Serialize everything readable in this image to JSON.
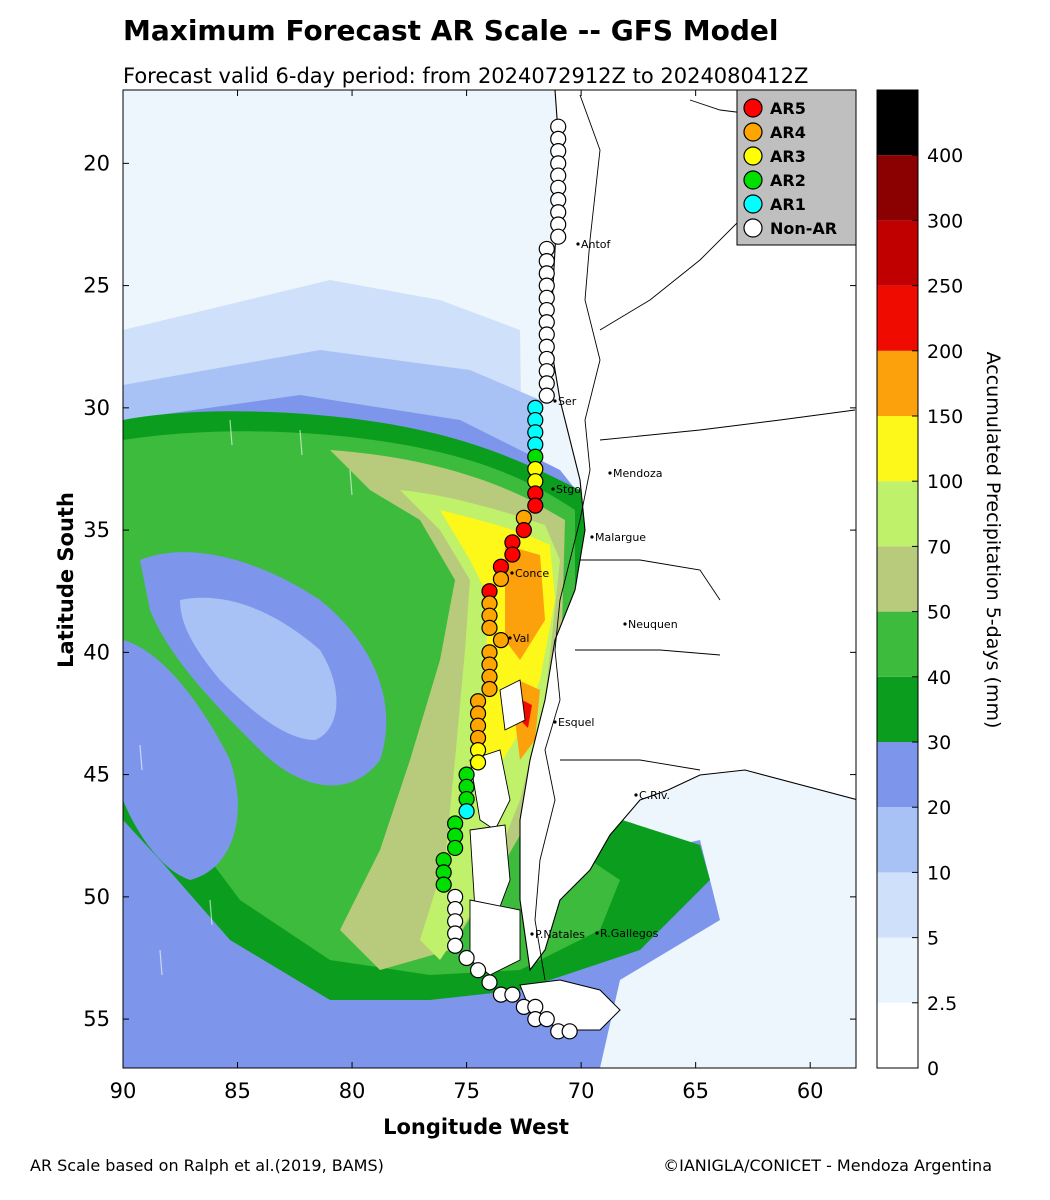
{
  "title": "Maximum Forecast AR Scale -- GFS Model",
  "subtitle": "Forecast valid 6-day period: from 2024072912Z to 2024080412Z",
  "axes": {
    "xlabel": "Longitude West",
    "ylabel": "Latitude South",
    "xticks": [
      "90",
      "85",
      "80",
      "75",
      "70",
      "65",
      "60"
    ],
    "yticks": [
      "20",
      "25",
      "30",
      "35",
      "40",
      "45",
      "50",
      "55"
    ]
  },
  "colorbar": {
    "label": "Accumulated Precipitation 5-days (mm)",
    "ticks": [
      "0",
      "2.5",
      "5",
      "10",
      "20",
      "30",
      "40",
      "50",
      "70",
      "100",
      "150",
      "200",
      "250",
      "300",
      "400"
    ],
    "colors": [
      "#ffffff",
      "#e9f4fd",
      "#cfe0fa",
      "#a8c2f5",
      "#7d96ec",
      "#0b9e1e",
      "#3cbb3c",
      "#b8cb7c",
      "#bff26a",
      "#fdf71a",
      "#fca00c",
      "#f00b00",
      "#c00000",
      "#8b0000",
      "#000000"
    ]
  },
  "legend": {
    "items": [
      {
        "label": "AR5",
        "color": "#ff0000"
      },
      {
        "label": "AR4",
        "color": "#ffa500"
      },
      {
        "label": "AR3",
        "color": "#ffff00"
      },
      {
        "label": "AR2",
        "color": "#00e000"
      },
      {
        "label": "AR1",
        "color": "#00ffff"
      },
      {
        "label": "Non-AR",
        "color": "#ffffff"
      }
    ]
  },
  "cities": [
    {
      "name": "Antof"
    },
    {
      "name": "Ser"
    },
    {
      "name": "Mendoza"
    },
    {
      "name": "Stgo"
    },
    {
      "name": "Malargue"
    },
    {
      "name": "Conce"
    },
    {
      "name": "Neuquen"
    },
    {
      "name": "Val"
    },
    {
      "name": "Esquel"
    },
    {
      "name": "C.Riv."
    },
    {
      "name": "P.Natales"
    },
    {
      "name": "R.Gallegos"
    }
  ],
  "footer": {
    "left": "AR Scale based on Ralph et al.(2019, BAMS)",
    "right": "©IANIGLA/CONICET - Mendoza Argentina"
  },
  "chart_data": {
    "type": "heatmap",
    "xlim": [
      90,
      58
    ],
    "ylim": [
      17,
      57
    ],
    "coastal_points": [
      {
        "lat": 18.5,
        "lon": 71.0,
        "scale": "Non-AR"
      },
      {
        "lat": 19.0,
        "lon": 71.0,
        "scale": "Non-AR"
      },
      {
        "lat": 19.5,
        "lon": 71.0,
        "scale": "Non-AR"
      },
      {
        "lat": 20.0,
        "lon": 71.0,
        "scale": "Non-AR"
      },
      {
        "lat": 20.5,
        "lon": 71.0,
        "scale": "Non-AR"
      },
      {
        "lat": 21.0,
        "lon": 71.0,
        "scale": "Non-AR"
      },
      {
        "lat": 21.5,
        "lon": 71.0,
        "scale": "Non-AR"
      },
      {
        "lat": 22.0,
        "lon": 71.0,
        "scale": "Non-AR"
      },
      {
        "lat": 22.5,
        "lon": 71.0,
        "scale": "Non-AR"
      },
      {
        "lat": 23.0,
        "lon": 71.0,
        "scale": "Non-AR"
      },
      {
        "lat": 23.5,
        "lon": 71.5,
        "scale": "Non-AR"
      },
      {
        "lat": 24.0,
        "lon": 71.5,
        "scale": "Non-AR"
      },
      {
        "lat": 24.5,
        "lon": 71.5,
        "scale": "Non-AR"
      },
      {
        "lat": 25.0,
        "lon": 71.5,
        "scale": "Non-AR"
      },
      {
        "lat": 25.5,
        "lon": 71.5,
        "scale": "Non-AR"
      },
      {
        "lat": 26.0,
        "lon": 71.5,
        "scale": "Non-AR"
      },
      {
        "lat": 26.5,
        "lon": 71.5,
        "scale": "Non-AR"
      },
      {
        "lat": 27.0,
        "lon": 71.5,
        "scale": "Non-AR"
      },
      {
        "lat": 27.5,
        "lon": 71.5,
        "scale": "Non-AR"
      },
      {
        "lat": 28.0,
        "lon": 71.5,
        "scale": "Non-AR"
      },
      {
        "lat": 28.5,
        "lon": 71.5,
        "scale": "Non-AR"
      },
      {
        "lat": 29.0,
        "lon": 71.5,
        "scale": "Non-AR"
      },
      {
        "lat": 29.5,
        "lon": 71.5,
        "scale": "Non-AR"
      },
      {
        "lat": 30.0,
        "lon": 72.0,
        "scale": "AR1"
      },
      {
        "lat": 30.5,
        "lon": 72.0,
        "scale": "AR1"
      },
      {
        "lat": 31.0,
        "lon": 72.0,
        "scale": "AR1"
      },
      {
        "lat": 31.5,
        "lon": 72.0,
        "scale": "AR1"
      },
      {
        "lat": 32.0,
        "lon": 72.0,
        "scale": "AR2"
      },
      {
        "lat": 32.5,
        "lon": 72.0,
        "scale": "AR3"
      },
      {
        "lat": 33.0,
        "lon": 72.0,
        "scale": "AR3"
      },
      {
        "lat": 33.5,
        "lon": 72.0,
        "scale": "AR5"
      },
      {
        "lat": 34.0,
        "lon": 72.0,
        "scale": "AR5"
      },
      {
        "lat": 34.5,
        "lon": 72.5,
        "scale": "AR4"
      },
      {
        "lat": 35.0,
        "lon": 72.5,
        "scale": "AR5"
      },
      {
        "lat": 35.5,
        "lon": 73.0,
        "scale": "AR5"
      },
      {
        "lat": 36.0,
        "lon": 73.0,
        "scale": "AR5"
      },
      {
        "lat": 36.5,
        "lon": 73.5,
        "scale": "AR5"
      },
      {
        "lat": 37.0,
        "lon": 73.5,
        "scale": "AR4"
      },
      {
        "lat": 37.5,
        "lon": 74.0,
        "scale": "AR5"
      },
      {
        "lat": 38.0,
        "lon": 74.0,
        "scale": "AR4"
      },
      {
        "lat": 38.5,
        "lon": 74.0,
        "scale": "AR4"
      },
      {
        "lat": 39.0,
        "lon": 74.0,
        "scale": "AR4"
      },
      {
        "lat": 39.5,
        "lon": 73.5,
        "scale": "AR4"
      },
      {
        "lat": 40.0,
        "lon": 74.0,
        "scale": "AR4"
      },
      {
        "lat": 40.5,
        "lon": 74.0,
        "scale": "AR4"
      },
      {
        "lat": 41.0,
        "lon": 74.0,
        "scale": "AR4"
      },
      {
        "lat": 41.5,
        "lon": 74.0,
        "scale": "AR4"
      },
      {
        "lat": 42.0,
        "lon": 74.5,
        "scale": "AR4"
      },
      {
        "lat": 42.5,
        "lon": 74.5,
        "scale": "AR4"
      },
      {
        "lat": 43.0,
        "lon": 74.5,
        "scale": "AR4"
      },
      {
        "lat": 43.5,
        "lon": 74.5,
        "scale": "AR4"
      },
      {
        "lat": 44.0,
        "lon": 74.5,
        "scale": "AR3"
      },
      {
        "lat": 44.5,
        "lon": 74.5,
        "scale": "AR3"
      },
      {
        "lat": 45.0,
        "lon": 75.0,
        "scale": "AR2"
      },
      {
        "lat": 45.5,
        "lon": 75.0,
        "scale": "AR2"
      },
      {
        "lat": 46.0,
        "lon": 75.0,
        "scale": "AR2"
      },
      {
        "lat": 46.5,
        "lon": 75.0,
        "scale": "AR1"
      },
      {
        "lat": 47.0,
        "lon": 75.5,
        "scale": "AR2"
      },
      {
        "lat": 47.5,
        "lon": 75.5,
        "scale": "AR2"
      },
      {
        "lat": 48.0,
        "lon": 75.5,
        "scale": "AR2"
      },
      {
        "lat": 48.5,
        "lon": 76.0,
        "scale": "AR2"
      },
      {
        "lat": 49.0,
        "lon": 76.0,
        "scale": "AR2"
      },
      {
        "lat": 49.5,
        "lon": 76.0,
        "scale": "AR2"
      },
      {
        "lat": 50.0,
        "lon": 75.5,
        "scale": "Non-AR"
      },
      {
        "lat": 50.5,
        "lon": 75.5,
        "scale": "Non-AR"
      },
      {
        "lat": 51.0,
        "lon": 75.5,
        "scale": "Non-AR"
      },
      {
        "lat": 51.5,
        "lon": 75.5,
        "scale": "Non-AR"
      },
      {
        "lat": 52.0,
        "lon": 75.5,
        "scale": "Non-AR"
      },
      {
        "lat": 52.5,
        "lon": 75.0,
        "scale": "Non-AR"
      },
      {
        "lat": 53.0,
        "lon": 74.5,
        "scale": "Non-AR"
      },
      {
        "lat": 53.5,
        "lon": 74.0,
        "scale": "Non-AR"
      },
      {
        "lat": 54.0,
        "lon": 73.5,
        "scale": "Non-AR"
      },
      {
        "lat": 54.0,
        "lon": 73.0,
        "scale": "Non-AR"
      },
      {
        "lat": 54.5,
        "lon": 72.5,
        "scale": "Non-AR"
      },
      {
        "lat": 54.5,
        "lon": 72.0,
        "scale": "Non-AR"
      },
      {
        "lat": 55.0,
        "lon": 72.0,
        "scale": "Non-AR"
      },
      {
        "lat": 55.0,
        "lon": 71.5,
        "scale": "Non-AR"
      },
      {
        "lat": 55.5,
        "lon": 71.0,
        "scale": "Non-AR"
      },
      {
        "lat": 55.5,
        "lon": 70.5,
        "scale": "Non-AR"
      }
    ]
  }
}
